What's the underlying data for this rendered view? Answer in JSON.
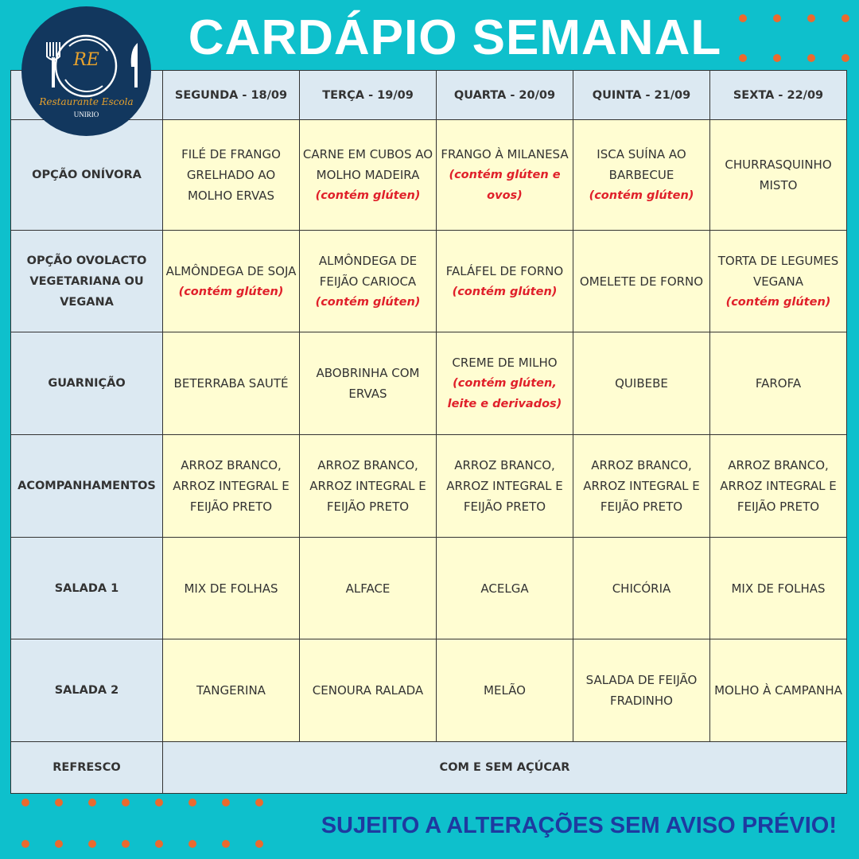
{
  "header": {
    "title": "CARDÁPIO SEMANAL"
  },
  "logo": {
    "initials": "RE",
    "name": "Restaurante Escola",
    "institution": "UNIRIO"
  },
  "table": {
    "columns": [
      "SEGUNDA - 18/09",
      "TERÇA - 19/09",
      "QUARTA - 20/09",
      "QUINTA - 21/09",
      "SEXTA - 22/09"
    ],
    "rows": [
      {
        "label": "OPÇÃO ONÍVORA",
        "cells": [
          {
            "text": "FILÉ DE FRANGO GRELHADO AO MOLHO ERVAS",
            "note": ""
          },
          {
            "text": "CARNE EM CUBOS AO MOLHO MADEIRA",
            "note": "(contém glúten)"
          },
          {
            "text": "FRANGO À MILANESA",
            "note": "(contém glúten e ovos)"
          },
          {
            "text": "ISCA SUÍNA AO BARBECUE",
            "note": "(contém glúten)"
          },
          {
            "text": "CHURRASQUINHO MISTO",
            "note": ""
          }
        ]
      },
      {
        "label": "OPÇÃO OVOLACTO VEGETARIANA OU VEGANA",
        "cells": [
          {
            "text": "ALMÔNDEGA DE SOJA",
            "note": "(contém glúten)"
          },
          {
            "text": "ALMÔNDEGA DE FEIJÃO CARIOCA",
            "note": "(contém glúten)"
          },
          {
            "text": "FALÁFEL DE FORNO",
            "note": "(contém glúten)"
          },
          {
            "text": "OMELETE DE FORNO",
            "note": ""
          },
          {
            "text": "TORTA DE LEGUMES VEGANA",
            "note": "(contém glúten)"
          }
        ]
      },
      {
        "label": "GUARNIÇÃO",
        "cells": [
          {
            "text": "BETERRABA SAUTÉ",
            "note": ""
          },
          {
            "text": "ABOBRINHA COM ERVAS",
            "note": ""
          },
          {
            "text": "CREME DE MILHO",
            "note": "(contém glúten, leite e derivados)"
          },
          {
            "text": "QUIBEBE",
            "note": ""
          },
          {
            "text": "FAROFA",
            "note": ""
          }
        ]
      },
      {
        "label": "ACOMPANHAMENTOS",
        "cells": [
          {
            "text": "ARROZ BRANCO, ARROZ INTEGRAL E FEIJÃO PRETO",
            "note": ""
          },
          {
            "text": "ARROZ BRANCO, ARROZ INTEGRAL E FEIJÃO PRETO",
            "note": ""
          },
          {
            "text": "ARROZ BRANCO, ARROZ INTEGRAL E FEIJÃO PRETO",
            "note": ""
          },
          {
            "text": "ARROZ BRANCO, ARROZ INTEGRAL E FEIJÃO PRETO",
            "note": ""
          },
          {
            "text": "ARROZ BRANCO, ARROZ INTEGRAL E FEIJÃO PRETO",
            "note": ""
          }
        ]
      },
      {
        "label": "SALADA 1",
        "cells": [
          {
            "text": "MIX DE FOLHAS",
            "note": ""
          },
          {
            "text": "ALFACE",
            "note": ""
          },
          {
            "text": "ACELGA",
            "note": ""
          },
          {
            "text": "CHICÓRIA",
            "note": ""
          },
          {
            "text": "MIX DE FOLHAS",
            "note": ""
          }
        ]
      },
      {
        "label": "SALADA 2",
        "cells": [
          {
            "text": "TANGERINA",
            "note": ""
          },
          {
            "text": "CENOURA RALADA",
            "note": ""
          },
          {
            "text": "MELÃO",
            "note": ""
          },
          {
            "text": "SALADA DE FEIJÃO FRADINHO",
            "note": ""
          },
          {
            "text": "MOLHO À CAMPANHA",
            "note": ""
          }
        ]
      }
    ],
    "refresco": {
      "label": "REFRESCO",
      "value": "COM E SEM AÇÚCAR"
    }
  },
  "footer": {
    "notice": "SUJEITO A ALTERAÇÕES SEM AVISO PRÉVIO!"
  },
  "colors": {
    "background": "#0ec0cc",
    "logo": "#12375e",
    "header_cell": "#dce9f2",
    "body_cell": "#fffdd2",
    "allergen": "#e0202a",
    "dots": "#ea6a2e",
    "footer": "#1e3aa0"
  }
}
